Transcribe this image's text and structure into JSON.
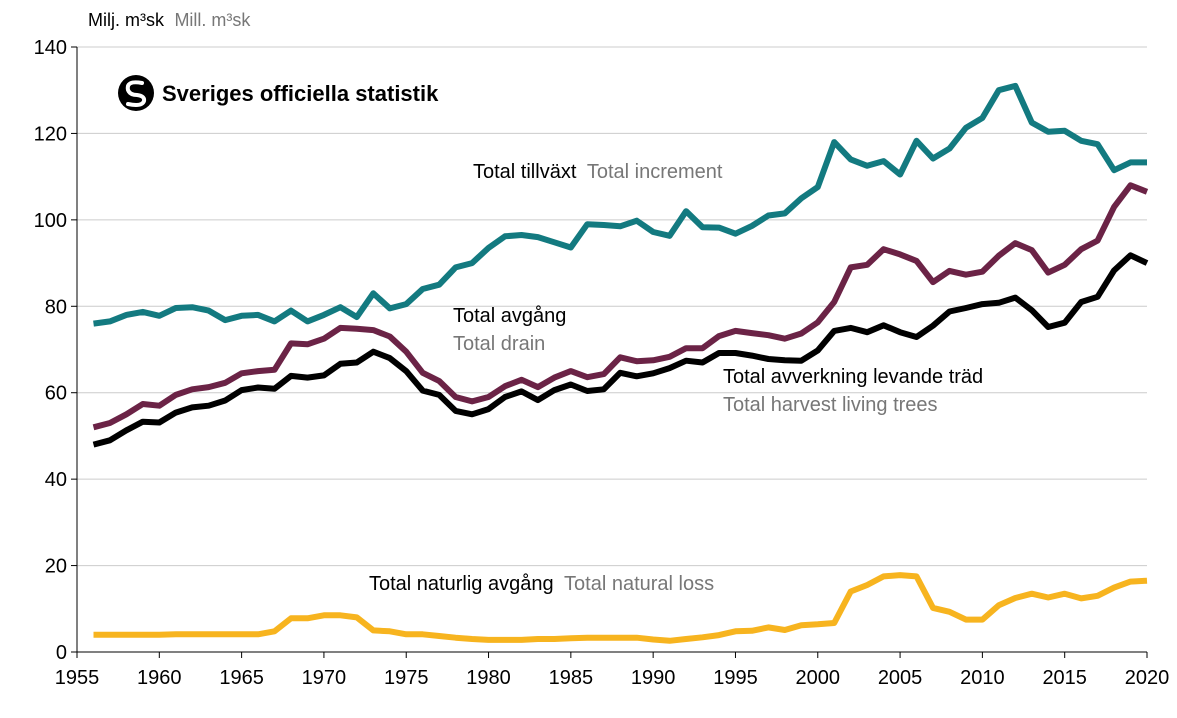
{
  "unit_label": {
    "sv": "Milj. m³sk",
    "en": "Mill. m³sk"
  },
  "logo": {
    "text": "Sveriges officiella statistik"
  },
  "colors": {
    "increment": "#137a80",
    "drain": "#6b2346",
    "harvest": "#000000",
    "natural_loss": "#f7b41f",
    "grid": "#cccccc",
    "axis": "#000000"
  },
  "chart_data": {
    "type": "line",
    "title": "",
    "xlabel": "",
    "ylabel": "Milj. m³sk Mill. m³sk",
    "xlim": [
      1955,
      2020
    ],
    "ylim": [
      0,
      140
    ],
    "xticks": [
      1955,
      1960,
      1965,
      1970,
      1975,
      1980,
      1985,
      1990,
      1995,
      2000,
      2005,
      2010,
      2015,
      2020
    ],
    "yticks": [
      0,
      20,
      40,
      60,
      80,
      100,
      120,
      140
    ],
    "grid": "horizontal",
    "x": [
      1956,
      1957,
      1958,
      1959,
      1960,
      1961,
      1962,
      1963,
      1964,
      1965,
      1966,
      1967,
      1968,
      1969,
      1970,
      1971,
      1972,
      1973,
      1974,
      1975,
      1976,
      1977,
      1978,
      1979,
      1980,
      1981,
      1982,
      1983,
      1984,
      1985,
      1986,
      1987,
      1988,
      1989,
      1990,
      1991,
      1992,
      1993,
      1994,
      1995,
      1996,
      1997,
      1998,
      1999,
      2000,
      2001,
      2002,
      2003,
      2004,
      2005,
      2006,
      2007,
      2008,
      2009,
      2010,
      2011,
      2012,
      2013,
      2014,
      2015,
      2016,
      2017,
      2018,
      2019,
      2020
    ],
    "series": [
      {
        "name": "Total tillväxt Total increment",
        "label_sv": "Total tillväxt",
        "label_en": "Total increment",
        "color": "#137a80",
        "values": [
          76,
          76.5,
          78,
          78.7,
          77.8,
          79.6,
          79.8,
          79,
          76.8,
          77.8,
          78,
          76.5,
          79,
          76.5,
          78,
          79.8,
          77.5,
          83,
          79.5,
          80.5,
          84,
          85,
          89,
          90,
          93.5,
          96.2,
          96.5,
          96,
          94.8,
          93.6,
          99,
          98.8,
          98.5,
          99.8,
          97.2,
          96.3,
          102,
          98.3,
          98.2,
          96.8,
          98.6,
          101,
          101.5,
          105,
          107.6,
          118,
          114,
          112.5,
          113.6,
          110.5,
          118.3,
          114.2,
          116.5,
          121.3,
          123.6,
          130,
          131,
          122.5,
          120.4,
          120.6,
          118.3,
          117.5,
          111.5,
          113.3,
          113.3
        ]
      },
      {
        "name": "Total avgång Total drain",
        "label_sv": "Total avgång",
        "label_en": "Total drain",
        "color": "#6b2346",
        "values": [
          52,
          53,
          55,
          57.4,
          57,
          59.5,
          60.8,
          61.3,
          62.3,
          64.5,
          65,
          65.3,
          71.4,
          71.2,
          72.5,
          75,
          74.8,
          74.5,
          73,
          69.5,
          64.6,
          62.7,
          59,
          58,
          59,
          61.5,
          63,
          61.3,
          63.5,
          65,
          63.6,
          64.3,
          68.2,
          67.3,
          67.5,
          68.3,
          70.3,
          70.3,
          73.1,
          74.3,
          73.8,
          73.3,
          72.5,
          73.7,
          76.3,
          81,
          89,
          89.6,
          93.2,
          92,
          90.5,
          85.6,
          88.2,
          87.3,
          88,
          91.7,
          94.6,
          93,
          87.8,
          89.6,
          93.2,
          95.2,
          103,
          108,
          106.5
        ]
      },
      {
        "name": "Total avverkning levande träd Total harvest living trees",
        "label_sv": "Total avverkning levande träd",
        "label_en": "Total harvest living trees",
        "color": "#000000",
        "values": [
          48,
          49,
          51.3,
          53.3,
          53.1,
          55.4,
          56.6,
          57,
          58.2,
          60.6,
          61.2,
          60.9,
          63.9,
          63.5,
          64,
          66.7,
          67,
          69.5,
          68,
          65,
          60.5,
          59.5,
          55.8,
          55,
          56.2,
          59,
          60.3,
          58.3,
          60.6,
          61.9,
          60.4,
          60.8,
          64.6,
          63.8,
          64.5,
          65.7,
          67.4,
          67,
          69.2,
          69.2,
          68.6,
          67.8,
          67.5,
          67.4,
          69.8,
          74.3,
          75,
          74,
          75.6,
          74,
          72.9,
          75.5,
          78.8,
          79.6,
          80.5,
          80.8,
          82,
          79.1,
          75.2,
          76.2,
          81,
          82.2,
          88.3,
          91.8,
          90
        ]
      },
      {
        "name": "Total naturlig avgång Total natural loss",
        "label_sv": "Total naturlig avgång",
        "label_en": "Total natural loss",
        "color": "#f7b41f",
        "values": [
          4,
          4,
          4,
          4,
          4,
          4.1,
          4.1,
          4.1,
          4.1,
          4.1,
          4.1,
          4.8,
          7.8,
          7.8,
          8.5,
          8.5,
          8,
          5,
          4.8,
          4.1,
          4.1,
          3.7,
          3.3,
          3,
          2.8,
          2.8,
          2.8,
          3,
          3,
          3.2,
          3.3,
          3.3,
          3.3,
          3.3,
          2.9,
          2.6,
          3,
          3.4,
          3.9,
          4.8,
          4.9,
          5.7,
          5.1,
          6.2,
          6.4,
          6.7,
          14,
          15.5,
          17.5,
          17.8,
          17.5,
          10.2,
          9.3,
          7.5,
          7.5,
          10.8,
          12.5,
          13.5,
          12.6,
          13.5,
          12.4,
          13,
          14.9,
          16.3,
          16.5
        ]
      }
    ]
  }
}
